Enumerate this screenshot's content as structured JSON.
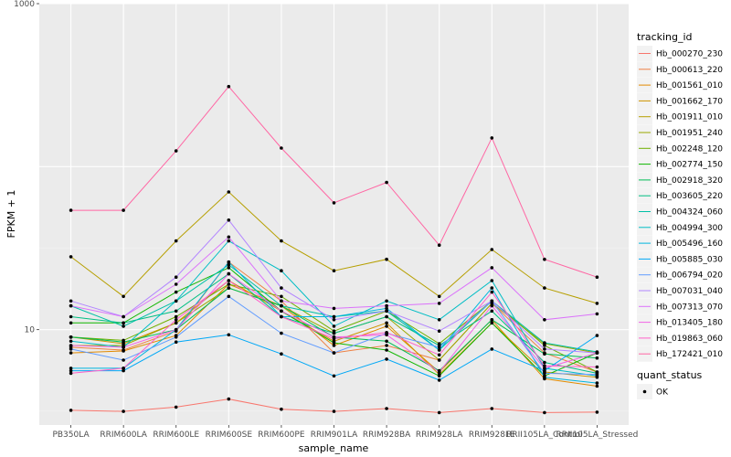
{
  "chart_data": {
    "type": "line",
    "xlabel": "sample_name",
    "ylabel": "FPKM + 1",
    "y_scale": "log10",
    "ylim": [
      2.6,
      1000
    ],
    "y_ticks": [
      {
        "value": 10,
        "label": "10"
      },
      {
        "value": 1000,
        "label": "1000"
      }
    ],
    "grid": true,
    "point_marker": "black-dot",
    "categories": [
      "PB350LA",
      "RRIM600LA",
      "RRIM600LE",
      "RRIM600SE",
      "RRIM600PE",
      "RRIM901LA",
      "RRIM928BA",
      "RRIM928LA",
      "RRIM928LE",
      "RRII105LA_Control",
      "RRII105LA_Stressed"
    ],
    "legend": {
      "title": "tracking_id",
      "position": "right",
      "shape_title": "quant_status",
      "shape_entries": [
        "OK"
      ]
    },
    "series": [
      {
        "name": "Hb_000270_230",
        "color": "#F8766D",
        "values": [
          3.2,
          3.15,
          3.35,
          3.75,
          3.25,
          3.15,
          3.28,
          3.1,
          3.28,
          3.1,
          3.12
        ]
      },
      {
        "name": "Hb_000613_220",
        "color": "#EE8043",
        "values": [
          7.8,
          7.5,
          9.8,
          26,
          15,
          7.2,
          8,
          6.5,
          14.5,
          7.2,
          5.5
        ]
      },
      {
        "name": "Hb_001561_010",
        "color": "#E18A00",
        "values": [
          7.2,
          7.4,
          9.2,
          19,
          14,
          8,
          10.5,
          5.5,
          11.5,
          5,
          4.5
        ]
      },
      {
        "name": "Hb_001662_170",
        "color": "#CF9400",
        "values": [
          9,
          8.2,
          11,
          20,
          13,
          8.5,
          11,
          5.3,
          11,
          5.5,
          5.1
        ]
      },
      {
        "name": "Hb_001911_010",
        "color": "#B69F00",
        "values": [
          28,
          16,
          35,
          70,
          35,
          23,
          27,
          16,
          31,
          18,
          14.5
        ]
      },
      {
        "name": "Hb_001951_240",
        "color": "#9AA800",
        "values": [
          8,
          8,
          11,
          18,
          14,
          9.5,
          12,
          6.5,
          14.5,
          8.2,
          7.2
        ]
      },
      {
        "name": "Hb_002248_120",
        "color": "#6FB000",
        "values": [
          9,
          8.6,
          12,
          19,
          16,
          9.8,
          13,
          8.2,
          15,
          8,
          5.5
        ]
      },
      {
        "name": "Hb_002774_150",
        "color": "#10B700",
        "values": [
          11,
          11,
          17,
          24,
          13,
          8.3,
          7.5,
          5.2,
          11,
          5.2,
          7.2
        ]
      },
      {
        "name": "Hb_002918_320",
        "color": "#00BC56",
        "values": [
          9,
          8.4,
          10,
          18,
          14,
          9,
          8.5,
          5.6,
          11.5,
          7.1,
          6.7
        ]
      },
      {
        "name": "Hb_003605_220",
        "color": "#00BF82",
        "values": [
          12,
          11,
          13,
          22,
          12,
          9.5,
          12,
          8,
          13,
          6.3,
          5.4
        ]
      },
      {
        "name": "Hb_004324_060",
        "color": "#00C0A6",
        "values": [
          14,
          10.5,
          15,
          25,
          14,
          12,
          13,
          7.5,
          15,
          8.3,
          7.3
        ]
      },
      {
        "name": "Hb_004994_300",
        "color": "#00BDC5",
        "values": [
          8.5,
          7.8,
          15,
          35,
          23,
          10.5,
          15,
          11.5,
          20,
          5.8,
          5.2
        ]
      },
      {
        "name": "Hb_005496_160",
        "color": "#00B5DF",
        "values": [
          5.8,
          5.8,
          10,
          26,
          12,
          12,
          13.5,
          7.5,
          18,
          5.1,
          4.7
        ]
      },
      {
        "name": "Hb_005885_030",
        "color": "#00A8F6",
        "values": [
          5.6,
          5.6,
          8.4,
          9.3,
          7.1,
          5.2,
          6.6,
          4.9,
          7.6,
          5.6,
          9.2
        ]
      },
      {
        "name": "Hb_006794_020",
        "color": "#619CFF",
        "values": [
          7.6,
          6.5,
          9,
          16,
          9.5,
          7.2,
          9.5,
          7.8,
          15,
          5.4,
          5.3
        ]
      },
      {
        "name": "Hb_007031_040",
        "color": "#B385FF",
        "values": [
          15,
          12,
          21,
          47,
          18,
          11.5,
          13,
          9.8,
          15,
          7.6,
          7.2
        ]
      },
      {
        "name": "Hb_007313_070",
        "color": "#DB72FB",
        "values": [
          14,
          12,
          19,
          37,
          15,
          13.5,
          14,
          14.5,
          24,
          11.5,
          12.5
        ]
      },
      {
        "name": "Hb_013405_180",
        "color": "#F265E7",
        "values": [
          8,
          7.8,
          10,
          22,
          13,
          9,
          9.3,
          5.5,
          14,
          5.8,
          7.2
        ]
      },
      {
        "name": "Hb_019863_060",
        "color": "#FF61C9",
        "values": [
          5.4,
          5.8,
          11.5,
          20,
          12,
          8.8,
          9.6,
          7,
          17,
          6,
          5.9
        ]
      },
      {
        "name": "Hb_172421_010",
        "color": "#FF67A4",
        "values": [
          54,
          54,
          125,
          310,
          130,
          60,
          80,
          33,
          150,
          27,
          21
        ]
      }
    ]
  }
}
